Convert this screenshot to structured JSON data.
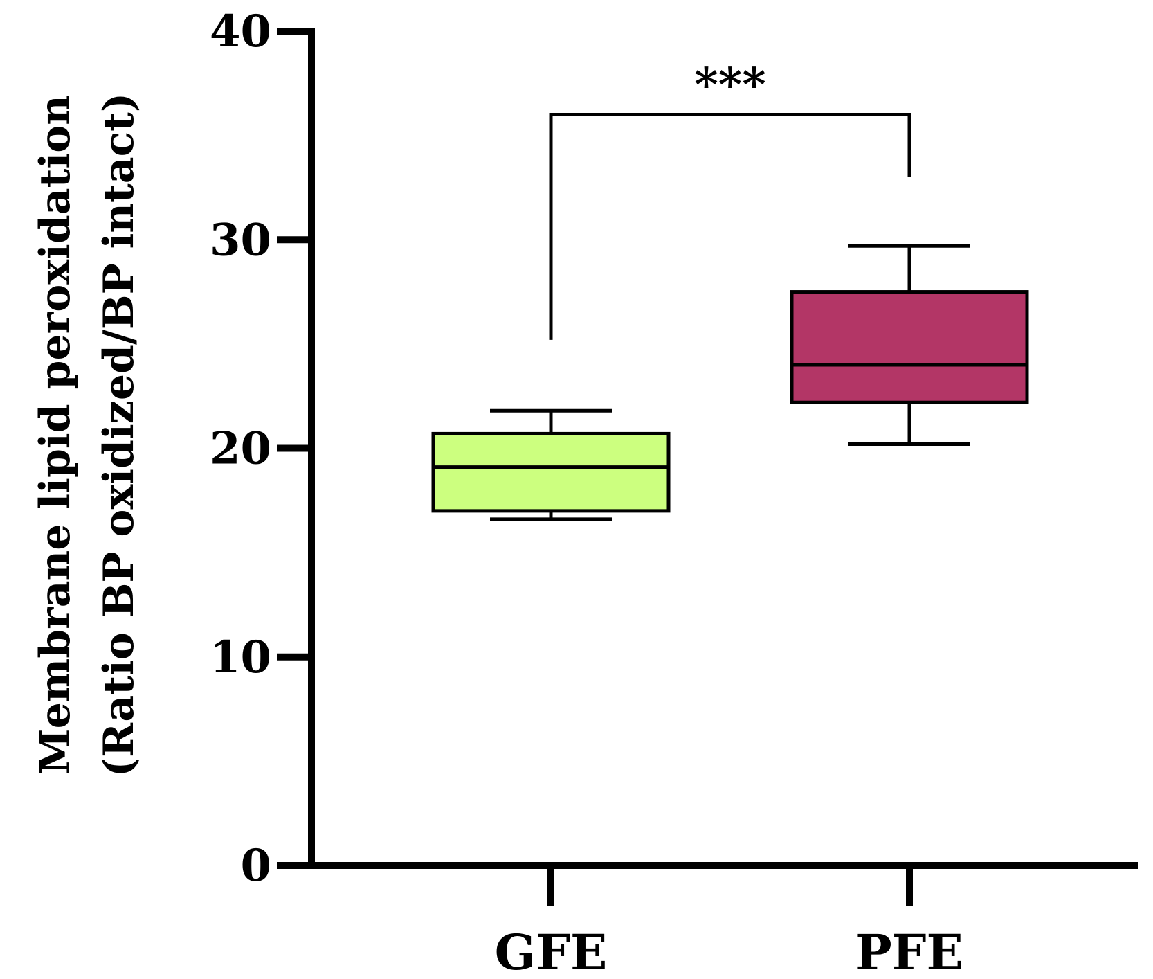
{
  "chart_data": {
    "type": "box",
    "title": "",
    "xlabel": "",
    "ylabel": "Membrane lipid peroxidation",
    "ylabel_line2": "(Ratio BP oxidized/BP intact)",
    "ylim": [
      0,
      40
    ],
    "yticks": [
      0,
      10,
      20,
      30,
      40
    ],
    "ytick_labels": [
      "0",
      "10",
      "20",
      "30",
      "40"
    ],
    "categories": [
      "GFE",
      "PFE"
    ],
    "boxes": [
      {
        "category": "GFE",
        "whisker_low": 16.6,
        "q1": 17.0,
        "median": 19.1,
        "q3": 20.7,
        "whisker_high": 21.8,
        "color": "#ccff7f"
      },
      {
        "category": "PFE",
        "whisker_low": 20.2,
        "q1": 22.2,
        "median": 24.0,
        "q3": 27.5,
        "whisker_high": 29.7,
        "color": "#b33666"
      }
    ],
    "significance": {
      "label": "***",
      "from": "GFE",
      "to": "PFE",
      "bracket_y": 36.0,
      "left_drop_to": 25.2,
      "right_drop_to": 33.0
    },
    "grid": false,
    "legend": "none"
  }
}
